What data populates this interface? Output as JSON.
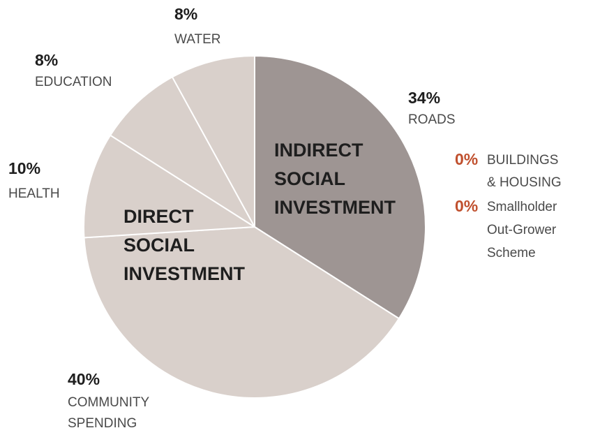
{
  "chart_data": {
    "type": "pie",
    "categories": [
      "ROADS",
      "BUILDINGS & HOUSING",
      "Smallholder Out-Grower Scheme",
      "COMMUNITY SPENDING",
      "HEALTH",
      "EDUCATION",
      "WATER"
    ],
    "values": [
      34,
      0,
      0,
      40,
      10,
      8,
      8
    ],
    "value_labels": [
      "34%",
      "0%",
      "0%",
      "40%",
      "10%",
      "8%",
      "8%"
    ],
    "colors": [
      "#9e9593",
      "#9e9593",
      "#9e9593",
      "#d9d0cb",
      "#d9d0cb",
      "#d9d0cb",
      "#d9d0cb"
    ],
    "annotations": [
      "INDIRECT SOCIAL INVESTMENT",
      "DIRECT SOCIAL INVESTMENT"
    ]
  }
}
